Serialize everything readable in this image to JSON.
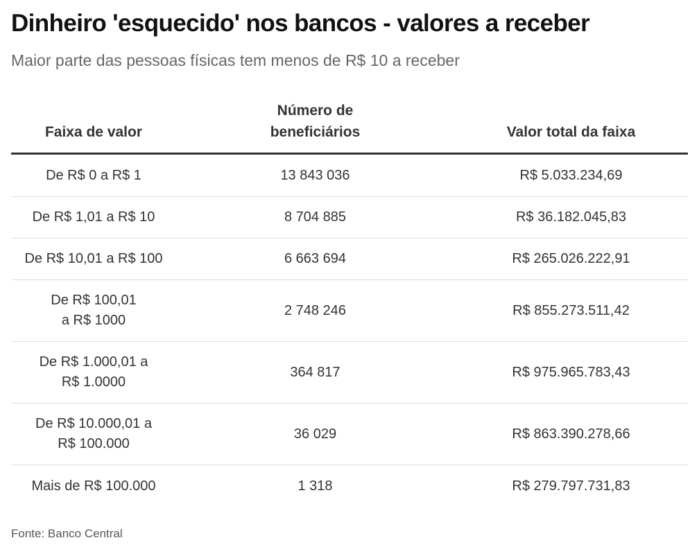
{
  "title": "Dinheiro 'esquecido' nos bancos - valores a receber",
  "subtitle": "Maior parte das pessoas físicas tem menos de R$ 10 a receber",
  "source": "Fonte: Banco Central",
  "chart_data": {
    "type": "table",
    "columns": [
      "Faixa de valor",
      "Número de beneficiários",
      "Valor total da faixa"
    ],
    "rows": [
      [
        "De R$ 0 a R$ 1",
        "13 843 036",
        "R$ 5.033.234,69"
      ],
      [
        "De R$ 1,01 a R$ 10",
        "8 704 885",
        "R$ 36.182.045,83"
      ],
      [
        "De R$ 10,01 a R$ 100",
        "6 663 694",
        "R$ 265.026.222,91"
      ],
      [
        "De R$ 100,01 a R$ 1000",
        "2 748 246",
        "R$ 855.273.511,42"
      ],
      [
        "De R$ 1.000,01 a R$ 1.0000",
        "364 817",
        "R$ 975.965.783,43"
      ],
      [
        "De R$ 10.000,01 a R$ 100.000",
        "36 029",
        "R$ 863.390.278,66"
      ],
      [
        "Mais de R$ 100.000",
        "1 318",
        "R$ 279.797.731,83"
      ]
    ]
  }
}
